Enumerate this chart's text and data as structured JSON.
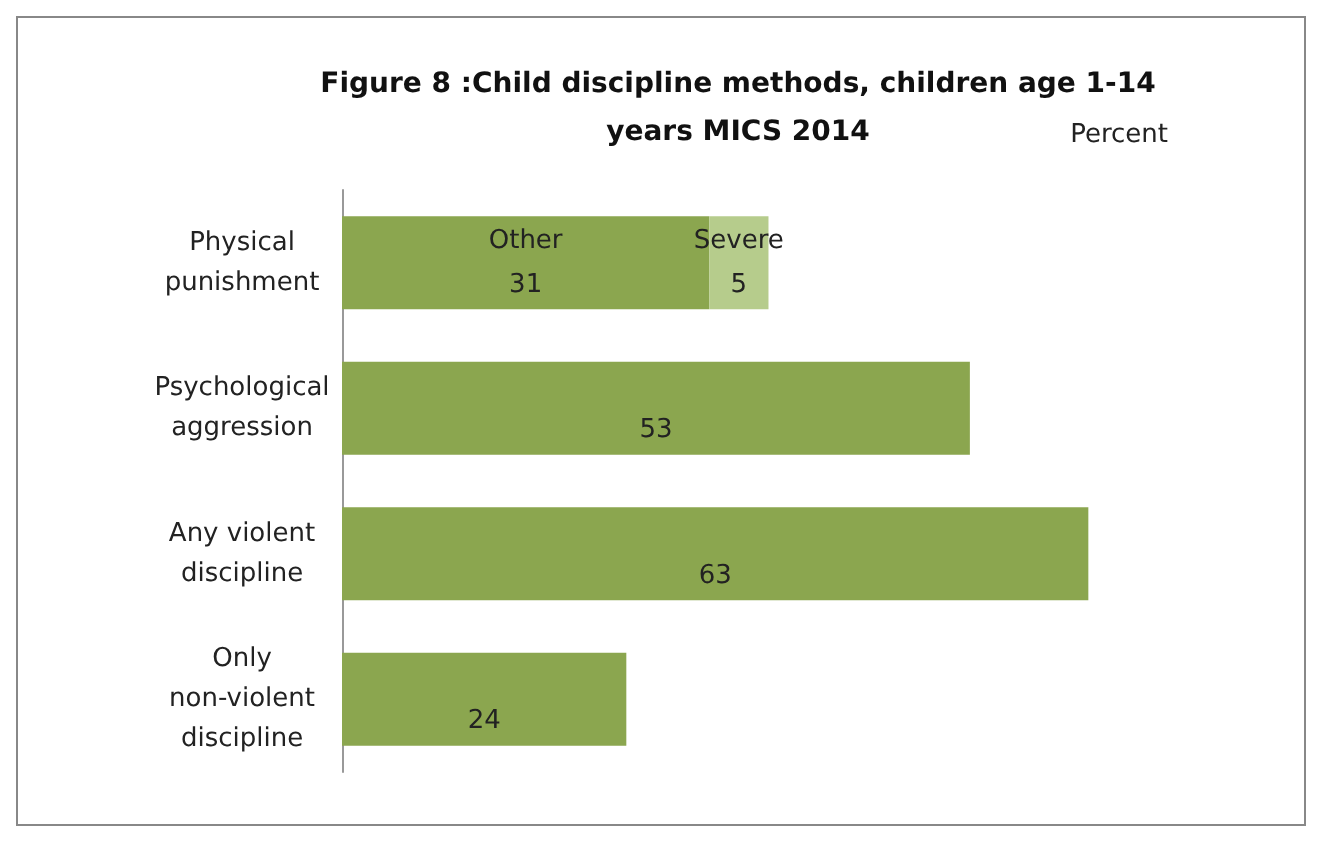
{
  "chart_data": {
    "type": "bar",
    "orientation": "horizontal",
    "stacked": true,
    "title": "Figure 8 :Child discipline methods, children age 1-14 years MICS 2014",
    "categories": [
      "Physical punishment",
      "Psychological aggression",
      "Any violent discipline",
      "Only non-violent discipline"
    ],
    "series": [
      {
        "name": "Other",
        "color": "#8ba64f",
        "values": [
          31,
          53,
          63,
          24
        ]
      },
      {
        "name": "Severe",
        "color": "#b6cc8c",
        "values": [
          5,
          null,
          null,
          null
        ]
      }
    ],
    "tick_labels": "y",
    "data_labels": true,
    "grid": false,
    "legend": false,
    "annotations": [
      "Percent"
    ]
  }
}
